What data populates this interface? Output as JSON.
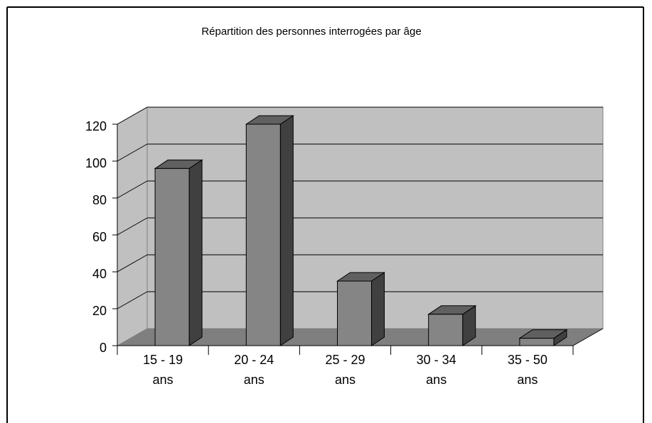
{
  "chart_data": {
    "type": "bar3d",
    "title": "Répartition des personnes interrogées par âge",
    "categories": [
      "15 - 19 ans",
      "20 - 24 ans",
      "25 - 29 ans",
      "30 - 34 ans",
      "35 - 50 ans"
    ],
    "values": [
      96,
      120,
      35,
      17,
      4
    ],
    "color": "#858585",
    "ylim": [
      0,
      120
    ],
    "yticks": [
      0,
      20,
      40,
      60,
      80,
      100,
      120
    ],
    "grid": true
  }
}
